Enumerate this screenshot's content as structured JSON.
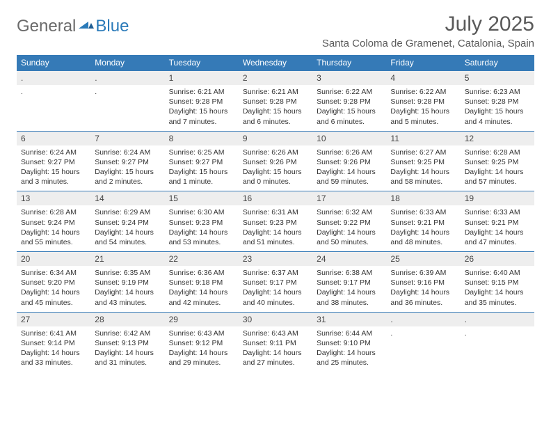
{
  "brand": {
    "general": "General",
    "blue": "Blue"
  },
  "title": "July 2025",
  "location": "Santa Coloma de Gramenet, Catalonia, Spain",
  "colors": {
    "header_bg": "#357ab7",
    "header_text": "#ffffff",
    "daynum_bg": "#eeeeee",
    "border": "#357ab7",
    "logo_gray": "#6a6a6a",
    "logo_blue": "#2a7ab9",
    "text": "#333333",
    "title_gray": "#5a5a5a"
  },
  "weekdays": [
    "Sunday",
    "Monday",
    "Tuesday",
    "Wednesday",
    "Thursday",
    "Friday",
    "Saturday"
  ],
  "weeks": [
    [
      {
        "n": "",
        "sr": "",
        "ss": "",
        "dl": ""
      },
      {
        "n": "",
        "sr": "",
        "ss": "",
        "dl": ""
      },
      {
        "n": "1",
        "sr": "Sunrise: 6:21 AM",
        "ss": "Sunset: 9:28 PM",
        "dl": "Daylight: 15 hours and 7 minutes."
      },
      {
        "n": "2",
        "sr": "Sunrise: 6:21 AM",
        "ss": "Sunset: 9:28 PM",
        "dl": "Daylight: 15 hours and 6 minutes."
      },
      {
        "n": "3",
        "sr": "Sunrise: 6:22 AM",
        "ss": "Sunset: 9:28 PM",
        "dl": "Daylight: 15 hours and 6 minutes."
      },
      {
        "n": "4",
        "sr": "Sunrise: 6:22 AM",
        "ss": "Sunset: 9:28 PM",
        "dl": "Daylight: 15 hours and 5 minutes."
      },
      {
        "n": "5",
        "sr": "Sunrise: 6:23 AM",
        "ss": "Sunset: 9:28 PM",
        "dl": "Daylight: 15 hours and 4 minutes."
      }
    ],
    [
      {
        "n": "6",
        "sr": "Sunrise: 6:24 AM",
        "ss": "Sunset: 9:27 PM",
        "dl": "Daylight: 15 hours and 3 minutes."
      },
      {
        "n": "7",
        "sr": "Sunrise: 6:24 AM",
        "ss": "Sunset: 9:27 PM",
        "dl": "Daylight: 15 hours and 2 minutes."
      },
      {
        "n": "8",
        "sr": "Sunrise: 6:25 AM",
        "ss": "Sunset: 9:27 PM",
        "dl": "Daylight: 15 hours and 1 minute."
      },
      {
        "n": "9",
        "sr": "Sunrise: 6:26 AM",
        "ss": "Sunset: 9:26 PM",
        "dl": "Daylight: 15 hours and 0 minutes."
      },
      {
        "n": "10",
        "sr": "Sunrise: 6:26 AM",
        "ss": "Sunset: 9:26 PM",
        "dl": "Daylight: 14 hours and 59 minutes."
      },
      {
        "n": "11",
        "sr": "Sunrise: 6:27 AM",
        "ss": "Sunset: 9:25 PM",
        "dl": "Daylight: 14 hours and 58 minutes."
      },
      {
        "n": "12",
        "sr": "Sunrise: 6:28 AM",
        "ss": "Sunset: 9:25 PM",
        "dl": "Daylight: 14 hours and 57 minutes."
      }
    ],
    [
      {
        "n": "13",
        "sr": "Sunrise: 6:28 AM",
        "ss": "Sunset: 9:24 PM",
        "dl": "Daylight: 14 hours and 55 minutes."
      },
      {
        "n": "14",
        "sr": "Sunrise: 6:29 AM",
        "ss": "Sunset: 9:24 PM",
        "dl": "Daylight: 14 hours and 54 minutes."
      },
      {
        "n": "15",
        "sr": "Sunrise: 6:30 AM",
        "ss": "Sunset: 9:23 PM",
        "dl": "Daylight: 14 hours and 53 minutes."
      },
      {
        "n": "16",
        "sr": "Sunrise: 6:31 AM",
        "ss": "Sunset: 9:23 PM",
        "dl": "Daylight: 14 hours and 51 minutes."
      },
      {
        "n": "17",
        "sr": "Sunrise: 6:32 AM",
        "ss": "Sunset: 9:22 PM",
        "dl": "Daylight: 14 hours and 50 minutes."
      },
      {
        "n": "18",
        "sr": "Sunrise: 6:33 AM",
        "ss": "Sunset: 9:21 PM",
        "dl": "Daylight: 14 hours and 48 minutes."
      },
      {
        "n": "19",
        "sr": "Sunrise: 6:33 AM",
        "ss": "Sunset: 9:21 PM",
        "dl": "Daylight: 14 hours and 47 minutes."
      }
    ],
    [
      {
        "n": "20",
        "sr": "Sunrise: 6:34 AM",
        "ss": "Sunset: 9:20 PM",
        "dl": "Daylight: 14 hours and 45 minutes."
      },
      {
        "n": "21",
        "sr": "Sunrise: 6:35 AM",
        "ss": "Sunset: 9:19 PM",
        "dl": "Daylight: 14 hours and 43 minutes."
      },
      {
        "n": "22",
        "sr": "Sunrise: 6:36 AM",
        "ss": "Sunset: 9:18 PM",
        "dl": "Daylight: 14 hours and 42 minutes."
      },
      {
        "n": "23",
        "sr": "Sunrise: 6:37 AM",
        "ss": "Sunset: 9:17 PM",
        "dl": "Daylight: 14 hours and 40 minutes."
      },
      {
        "n": "24",
        "sr": "Sunrise: 6:38 AM",
        "ss": "Sunset: 9:17 PM",
        "dl": "Daylight: 14 hours and 38 minutes."
      },
      {
        "n": "25",
        "sr": "Sunrise: 6:39 AM",
        "ss": "Sunset: 9:16 PM",
        "dl": "Daylight: 14 hours and 36 minutes."
      },
      {
        "n": "26",
        "sr": "Sunrise: 6:40 AM",
        "ss": "Sunset: 9:15 PM",
        "dl": "Daylight: 14 hours and 35 minutes."
      }
    ],
    [
      {
        "n": "27",
        "sr": "Sunrise: 6:41 AM",
        "ss": "Sunset: 9:14 PM",
        "dl": "Daylight: 14 hours and 33 minutes."
      },
      {
        "n": "28",
        "sr": "Sunrise: 6:42 AM",
        "ss": "Sunset: 9:13 PM",
        "dl": "Daylight: 14 hours and 31 minutes."
      },
      {
        "n": "29",
        "sr": "Sunrise: 6:43 AM",
        "ss": "Sunset: 9:12 PM",
        "dl": "Daylight: 14 hours and 29 minutes."
      },
      {
        "n": "30",
        "sr": "Sunrise: 6:43 AM",
        "ss": "Sunset: 9:11 PM",
        "dl": "Daylight: 14 hours and 27 minutes."
      },
      {
        "n": "31",
        "sr": "Sunrise: 6:44 AM",
        "ss": "Sunset: 9:10 PM",
        "dl": "Daylight: 14 hours and 25 minutes."
      },
      {
        "n": "",
        "sr": "",
        "ss": "",
        "dl": ""
      },
      {
        "n": "",
        "sr": "",
        "ss": "",
        "dl": ""
      }
    ]
  ]
}
